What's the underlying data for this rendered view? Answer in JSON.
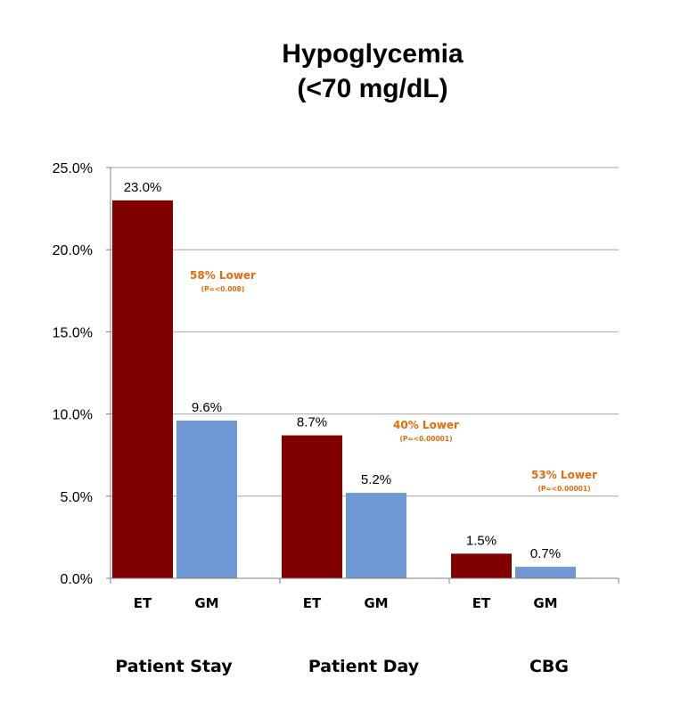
{
  "chart_data": {
    "type": "bar",
    "title_lines": [
      "Hypoglycemia",
      "(<70 mg/dL)"
    ],
    "y_ticks": [
      "0.0%",
      "5.0%",
      "10.0%",
      "15.0%",
      "20.0%",
      "25.0%"
    ],
    "ylim": [
      0,
      25
    ],
    "grid": true,
    "groups": [
      {
        "name": "Patient Stay",
        "bars": [
          {
            "label": "ET",
            "value": 23.0,
            "value_label": "23.0%"
          },
          {
            "label": "GM",
            "value": 9.6,
            "value_label": "9.6%"
          }
        ],
        "annotation": {
          "main": "58% Lower",
          "sub": "(P=<0.008)"
        }
      },
      {
        "name": "Patient Day",
        "bars": [
          {
            "label": "ET",
            "value": 8.7,
            "value_label": "8.7%"
          },
          {
            "label": "GM",
            "value": 5.2,
            "value_label": "5.2%"
          }
        ],
        "annotation": {
          "main": "40% Lower",
          "sub": "(P=<0.00001)"
        }
      },
      {
        "name": "CBG",
        "bars": [
          {
            "label": "ET",
            "value": 1.5,
            "value_label": "1.5%"
          },
          {
            "label": "GM",
            "value": 0.7,
            "value_label": "0.7%"
          }
        ],
        "annotation": {
          "main": "53% Lower",
          "sub": "(P=<0.00001)"
        }
      }
    ],
    "colors": {
      "ET": "#800000",
      "GM": "#6F97D4",
      "annotation": "#E46C0A",
      "grid": "#A6A6A6"
    }
  }
}
